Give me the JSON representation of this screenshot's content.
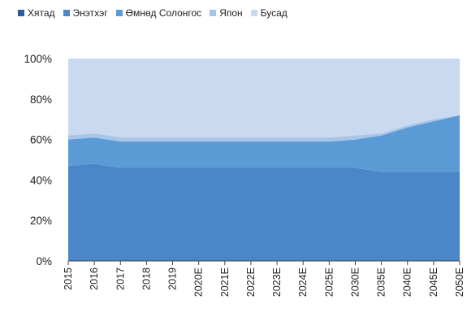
{
  "chart_data": {
    "type": "area",
    "stacking": "percent",
    "title": "",
    "xlabel": "",
    "ylabel": "",
    "categories": [
      "2015",
      "2016",
      "2017",
      "2018",
      "2019",
      "2020E",
      "2021E",
      "2022E",
      "2023E",
      "2024E",
      "2025E",
      "2030E",
      "2035E",
      "2040E",
      "2045E",
      "2050E"
    ],
    "ylim": [
      0,
      100
    ],
    "y_ticks": [
      "0%",
      "20%",
      "40%",
      "60%",
      "80%",
      "100%"
    ],
    "grid": false,
    "legend_position": "top",
    "series": [
      {
        "name": "Хятад",
        "color": "#2e5aa0",
        "values": [
          0,
          0,
          0,
          0,
          0,
          0,
          0,
          0,
          0,
          0,
          0,
          0,
          0,
          0,
          0,
          0
        ]
      },
      {
        "name": "Энэтхэг",
        "color": "#4a86c8",
        "values": [
          47,
          48,
          46,
          46,
          46,
          46,
          46,
          46,
          46,
          46,
          46,
          46,
          44,
          44,
          44,
          44
        ]
      },
      {
        "name": "Өмнөд Солонгос",
        "color": "#5b9bd5",
        "values": [
          13,
          13,
          13,
          13,
          13,
          13,
          13,
          13,
          13,
          13,
          13,
          14,
          18,
          22,
          25,
          28
        ]
      },
      {
        "name": "Япон",
        "color": "#a8c4e6",
        "values": [
          2,
          2,
          2,
          2,
          2,
          2,
          2,
          2,
          2,
          2,
          2,
          2,
          1,
          1,
          1,
          0
        ]
      },
      {
        "name": "Бусад",
        "color": "#c9d9ef",
        "values": [
          38,
          37,
          39,
          39,
          39,
          39,
          39,
          39,
          39,
          39,
          39,
          38,
          37,
          33,
          30,
          28
        ]
      }
    ]
  }
}
